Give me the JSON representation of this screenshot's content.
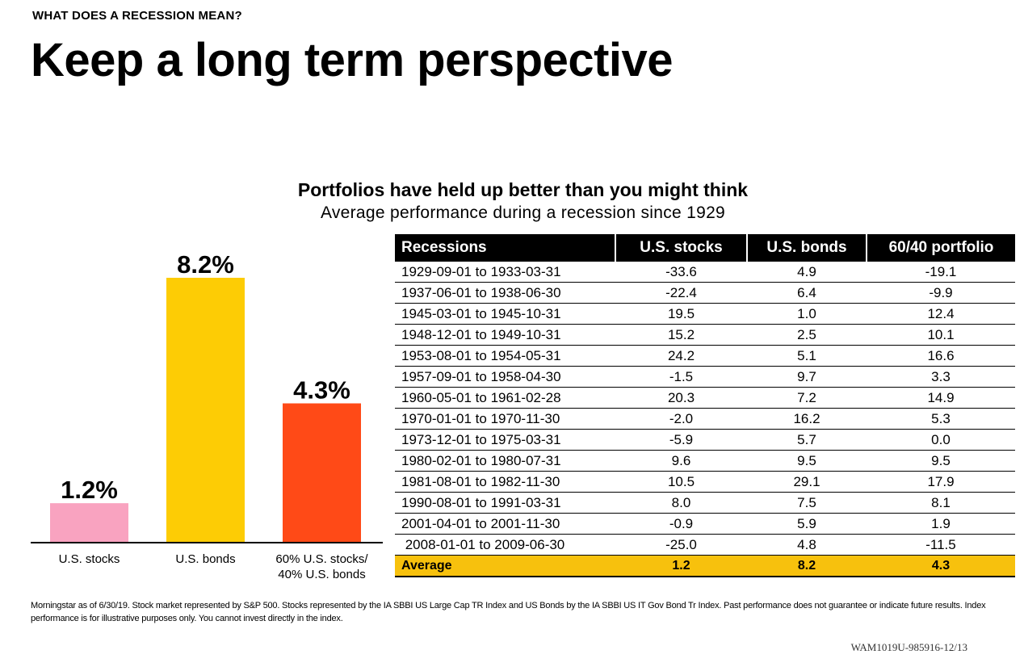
{
  "header": {
    "kicker": "WHAT DOES A RECESSION MEAN?",
    "headline": "Keep a long term perspective"
  },
  "chart": {
    "title": "Portfolios have held up better than you might think",
    "subtitle": "Average performance during a recession since 1929"
  },
  "chart_data": [
    {
      "type": "bar",
      "categories": [
        "U.S. stocks",
        "U.S. bonds",
        "60% U.S. stocks/\n40% U.S. bonds"
      ],
      "values": [
        1.2,
        8.2,
        4.3
      ],
      "value_labels": [
        "1.2%",
        "8.2%",
        "4.3%"
      ],
      "colors": [
        "#f9a3c0",
        "#fdcc05",
        "#ff4a17"
      ],
      "ylim": [
        0,
        8.2
      ],
      "grid": false,
      "legend": "none"
    },
    {
      "type": "table",
      "columns": [
        "Recessions",
        "U.S. stocks",
        "U.S. bonds",
        "60/40 portfolio"
      ],
      "rows": [
        [
          "1929-09-01 to 1933-03-31",
          "-33.6",
          "4.9",
          "-19.1"
        ],
        [
          "1937-06-01 to 1938-06-30",
          "-22.4",
          "6.4",
          "-9.9"
        ],
        [
          "1945-03-01 to 1945-10-31",
          "19.5",
          "1.0",
          "12.4"
        ],
        [
          "1948-12-01 to 1949-10-31",
          "15.2",
          "2.5",
          "10.1"
        ],
        [
          "1953-08-01 to 1954-05-31",
          "24.2",
          "5.1",
          "16.6"
        ],
        [
          "1957-09-01 to 1958-04-30",
          "-1.5",
          "9.7",
          "3.3"
        ],
        [
          "1960-05-01 to 1961-02-28",
          "20.3",
          "7.2",
          "14.9"
        ],
        [
          "1970-01-01 to 1970-11-30",
          "-2.0",
          "16.2",
          "5.3"
        ],
        [
          "1973-12-01 to 1975-03-31",
          "-5.9",
          "5.7",
          "0.0"
        ],
        [
          "1980-02-01 to 1980-07-31",
          "9.6",
          "9.5",
          "9.5"
        ],
        [
          "1981-08-01 to 1982-11-30",
          "10.5",
          "29.1",
          "17.9"
        ],
        [
          "1990-08-01 to 1991-03-31",
          "8.0",
          "7.5",
          "8.1"
        ],
        [
          "2001-04-01 to 2001-11-30",
          "-0.9",
          "5.9",
          "1.9"
        ],
        [
          " 2008-01-01 to 2009-06-30",
          "-25.0",
          "4.8",
          "-11.5"
        ]
      ],
      "average": [
        "Average",
        "1.2",
        "8.2",
        "4.3"
      ],
      "highlight_color": "#f7c10d"
    }
  ],
  "footnote": "Morningstar as of 6/30/19. Stock market represented by S&P 500. Stocks represented by the IA SBBI US Large Cap TR Index and US Bonds by the IA SBBI US IT Gov Bond Tr Index. Past performance does not guarantee or indicate future results. Index performance is for illustrative purposes only. You cannot invest directly in the index.",
  "code": "WAM1019U-985916-12/13"
}
